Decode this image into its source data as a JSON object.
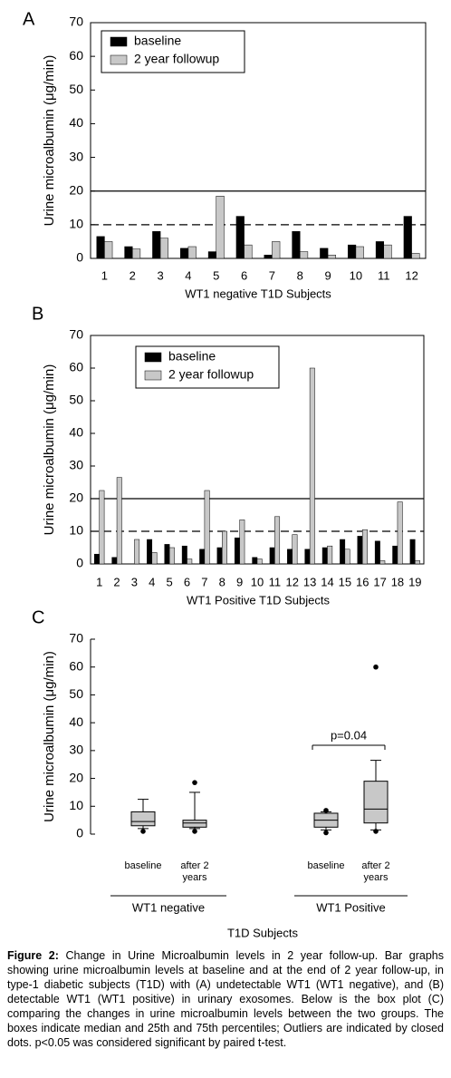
{
  "chart_data": [
    {
      "type": "bar",
      "panel": "A",
      "y_label": "Urine microalbumin (μg/min)",
      "x_label": "WT1 negative T1D Subjects",
      "categories": [
        "1",
        "2",
        "3",
        "4",
        "5",
        "6",
        "7",
        "8",
        "9",
        "10",
        "11",
        "12"
      ],
      "series": [
        {
          "name": "baseline",
          "color": "#000000",
          "values": [
            6.5,
            3.5,
            8,
            3,
            2,
            12.5,
            1,
            8,
            3,
            4,
            5,
            12.5
          ]
        },
        {
          "name": "2 year followup",
          "color": "#c8c8c8",
          "values": [
            5,
            2.8,
            6,
            3.5,
            18.5,
            4,
            5,
            2,
            1,
            3.5,
            4,
            1.5
          ]
        }
      ],
      "ylim": [
        0,
        70
      ],
      "yticks": [
        0,
        10,
        20,
        30,
        40,
        50,
        60,
        70
      ],
      "legend": "upper left",
      "reference_lines": [
        {
          "value": 20,
          "style": "solid"
        },
        {
          "value": 10,
          "style": "dashed"
        }
      ]
    },
    {
      "type": "bar",
      "panel": "B",
      "y_label": "Urine microalbumin (μg/min)",
      "x_label": "WT1 Positive T1D Subjects",
      "categories": [
        "1",
        "2",
        "3",
        "4",
        "5",
        "6",
        "7",
        "8",
        "9",
        "10",
        "11",
        "12",
        "13",
        "14",
        "15",
        "16",
        "17",
        "18",
        "19"
      ],
      "series": [
        {
          "name": "baseline",
          "color": "#000000",
          "values": [
            3,
            2,
            0,
            7.5,
            6,
            5.5,
            4.5,
            5,
            8,
            2,
            5,
            4.5,
            4.5,
            5,
            7.5,
            8.5,
            7,
            5.5,
            7.5
          ]
        },
        {
          "name": "2 year followup",
          "color": "#c8c8c8",
          "values": [
            22.5,
            26.5,
            7.5,
            3.5,
            5,
            1.5,
            22.5,
            10,
            13.5,
            1.5,
            14.5,
            9,
            60,
            5.5,
            4.5,
            10.5,
            1,
            19,
            1
          ]
        }
      ],
      "ylim": [
        0,
        70
      ],
      "yticks": [
        0,
        10,
        20,
        30,
        40,
        50,
        60,
        70
      ],
      "legend": "upper left",
      "reference_lines": [
        {
          "value": 20,
          "style": "solid"
        },
        {
          "value": 10,
          "style": "dashed"
        }
      ]
    },
    {
      "type": "box",
      "panel": "C",
      "y_label": "Urine microalbumin (μg/min)",
      "x_label": "T1D Subjects",
      "groups": [
        {
          "name": "WT1 negative",
          "categories": [
            "baseline",
            "after 2 years"
          ]
        },
        {
          "name": "WT1 Positive",
          "categories": [
            "baseline",
            "after 2 years"
          ]
        }
      ],
      "color": "#c8c8c8",
      "boxes": [
        {
          "whisker_low": 2,
          "q1": 3,
          "median": 4.5,
          "q3": 8,
          "whisker_high": 12.5,
          "outliers": [
            1
          ]
        },
        {
          "whisker_low": 2,
          "q1": 2.5,
          "median": 4,
          "q3": 5,
          "whisker_high": 15,
          "outliers": [
            1,
            18.5
          ]
        },
        {
          "whisker_low": 1.5,
          "q1": 2.5,
          "median": 5,
          "q3": 7.5,
          "whisker_high": 8,
          "outliers": [
            0.5,
            8.5
          ]
        },
        {
          "whisker_low": 1.5,
          "q1": 4,
          "median": 9,
          "q3": 19,
          "whisker_high": 26.5,
          "outliers": [
            1,
            60
          ]
        }
      ],
      "annotation": "p=0.04",
      "ylim": [
        0,
        70
      ],
      "yticks": [
        0,
        10,
        20,
        30,
        40,
        50,
        60,
        70
      ]
    }
  ],
  "caption": {
    "label": "Figure 2:",
    "text": "Change in Urine Microalbumin levels in 2 year follow-up. Bar graphs showing urine microalbumin levels at baseline and at the end of 2 year follow-up, in type-1 diabetic subjects (T1D) with (A) undetectable WT1 (WT1 negative), and (B) detectable WT1 (WT1 positive) in urinary exosomes. Below is the box plot (C) comparing the changes in urine microalbumin levels between the two groups. The boxes indicate median and 25th and 75th percentiles; Outliers are indicated by closed dots. p<0.05 was considered significant by paired t-test."
  }
}
